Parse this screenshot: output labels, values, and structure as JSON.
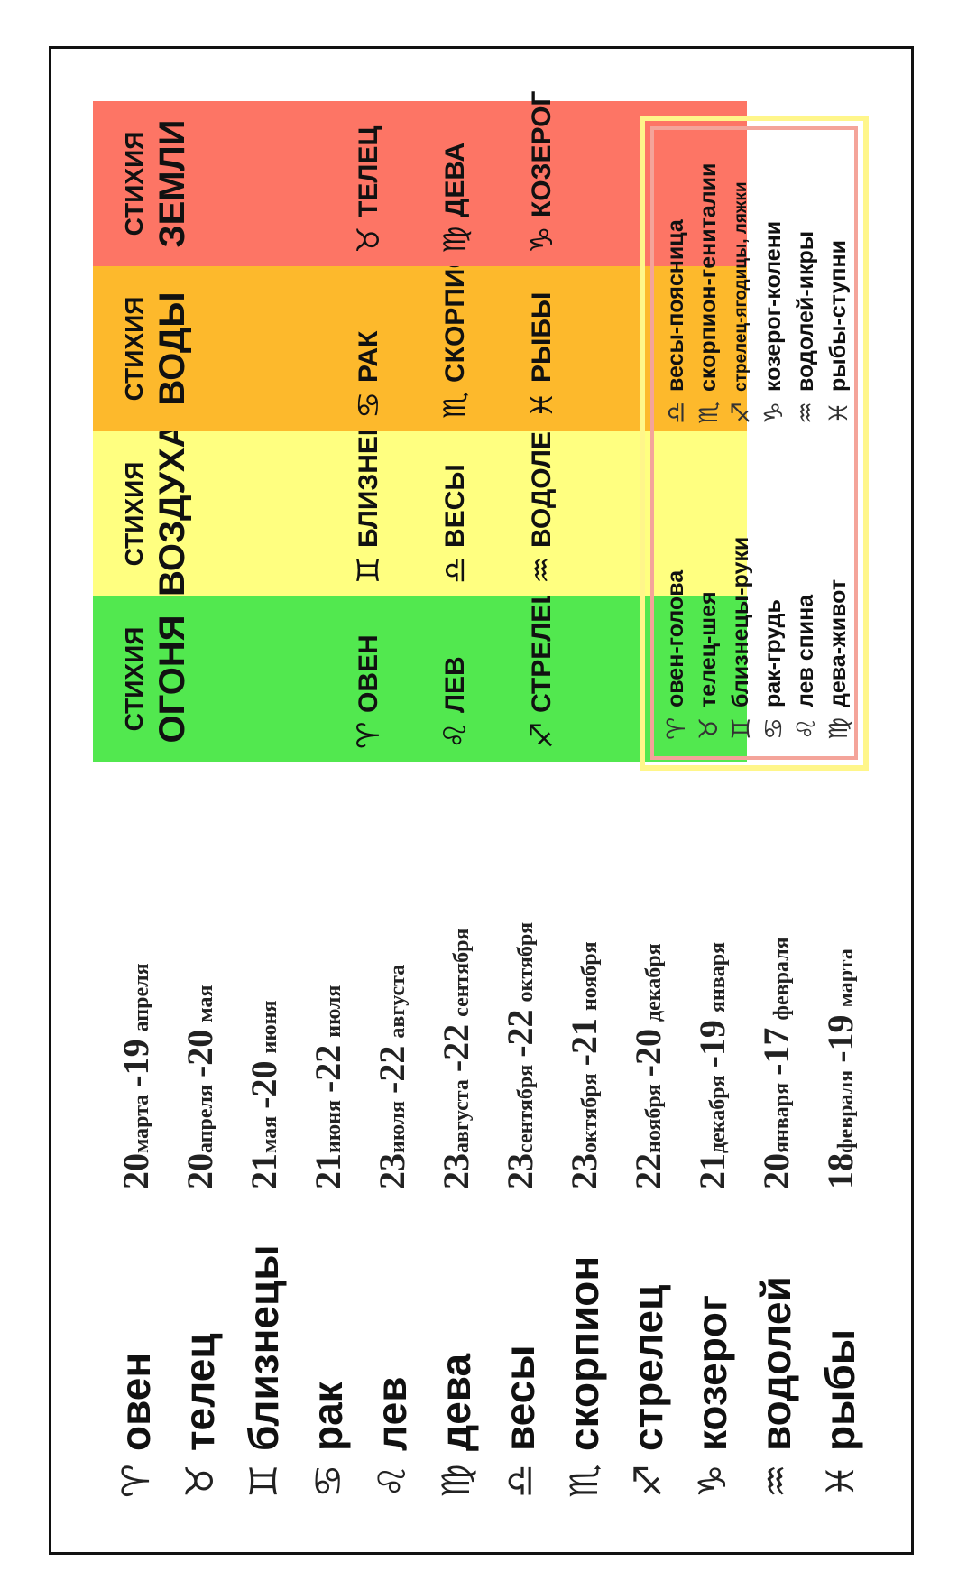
{
  "signs": [
    {
      "symbol": "♈︎",
      "name": "овен",
      "start_day": "20",
      "start_month": "марта",
      "end_day": "-19",
      "end_month": "апреля"
    },
    {
      "symbol": "♉︎",
      "name": "телец",
      "start_day": "20",
      "start_month": "апреля",
      "end_day": "-20",
      "end_month": "мая"
    },
    {
      "symbol": "♊︎",
      "name": "близнецы",
      "start_day": "21",
      "start_month": "мая",
      "end_day": "-20",
      "end_month": "июня"
    },
    {
      "symbol": "♋︎",
      "name": "рак",
      "start_day": "21",
      "start_month": "июня",
      "end_day": "-22",
      "end_month": "июля"
    },
    {
      "symbol": "♌︎",
      "name": "лев",
      "start_day": "23",
      "start_month": "июля",
      "end_day": "-22",
      "end_month": "августа"
    },
    {
      "symbol": "♍︎",
      "name": "дева",
      "start_day": "23",
      "start_month": "августа",
      "end_day": "-22",
      "end_month": "сентября"
    },
    {
      "symbol": "♎︎",
      "name": "весы",
      "start_day": "23",
      "start_month": "сентября",
      "end_day": "-22",
      "end_month": "октября"
    },
    {
      "symbol": "♏︎",
      "name": "скорпион",
      "start_day": "23",
      "start_month": "октября",
      "end_day": "-21",
      "end_month": "ноября"
    },
    {
      "symbol": "♐︎",
      "name": "стрелец",
      "start_day": "22",
      "start_month": "ноября",
      "end_day": "-20",
      "end_month": "декабря"
    },
    {
      "symbol": "♑︎",
      "name": "козерог",
      "start_day": "21",
      "start_month": "декабря",
      "end_day": "-19",
      "end_month": "января"
    },
    {
      "symbol": "♒︎",
      "name": "водолей",
      "start_day": "20",
      "start_month": "января",
      "end_day": "-17",
      "end_month": "февраля"
    },
    {
      "symbol": "♓︎",
      "name": "рыбы",
      "start_day": "18",
      "start_month": "февраля",
      "end_day": "-19",
      "end_month": "марта"
    }
  ],
  "elements": [
    {
      "line1": "СТИХИЯ",
      "line2": "ОГОНЯ",
      "color": "#52e84f",
      "signs": [
        {
          "symbol": "♈︎",
          "name": "ОВЕН"
        },
        {
          "symbol": "♌︎",
          "name": "ЛЕВ"
        },
        {
          "symbol": "♐︎",
          "name": "СТРЕЛЕЦ"
        }
      ]
    },
    {
      "line1": "СТИХИЯ",
      "line2": "ВОЗДУХА",
      "color": "#ffff80",
      "signs": [
        {
          "symbol": "♊︎",
          "name": "БЛИЗНЕЦЫ"
        },
        {
          "symbol": "♎︎",
          "name": "ВЕСЫ"
        },
        {
          "symbol": "♒︎",
          "name": "ВОДОЛЕЙ"
        }
      ]
    },
    {
      "line1": "СТИХИЯ",
      "line2": "ВОДЫ",
      "color": "#fdb92c",
      "signs": [
        {
          "symbol": "♋︎",
          "name": "РАК"
        },
        {
          "symbol": "♏︎",
          "name": "СКОРПИОН"
        },
        {
          "symbol": "♓︎",
          "name": "РЫБЫ"
        }
      ]
    },
    {
      "line1": "СТИХИЯ",
      "line2": "ЗЕМЛИ",
      "color": "#fd7565",
      "signs": [
        {
          "symbol": "♉︎",
          "name": "ТЕЛЕЦ"
        },
        {
          "symbol": "♍︎",
          "name": "ДЕВА"
        },
        {
          "symbol": "♑︎",
          "name": "КОЗЕРОГ"
        }
      ]
    }
  ],
  "legend": [
    {
      "symbol": "♈︎",
      "text": "овен-голова"
    },
    {
      "symbol": "♉︎",
      "text": "телец-шея"
    },
    {
      "symbol": "♊︎",
      "text": "близнецы-руки"
    },
    {
      "symbol": "♋︎",
      "text": "рак-грудь"
    },
    {
      "symbol": "♌︎",
      "text": "лев спина"
    },
    {
      "symbol": "♍︎",
      "text": "дева-живот"
    },
    {
      "symbol": "♎︎",
      "text": "весы-поясница"
    },
    {
      "symbol": "♏︎",
      "text": "скорпион-гениталии"
    },
    {
      "symbol": "♐︎",
      "text": "стрелец-ягодицы, ляжки"
    },
    {
      "symbol": "♑︎",
      "text": "козерог-колени"
    },
    {
      "symbol": "♒︎",
      "text": "водолей-икры"
    },
    {
      "symbol": "♓︎",
      "text": "рыбы-ступни"
    }
  ]
}
